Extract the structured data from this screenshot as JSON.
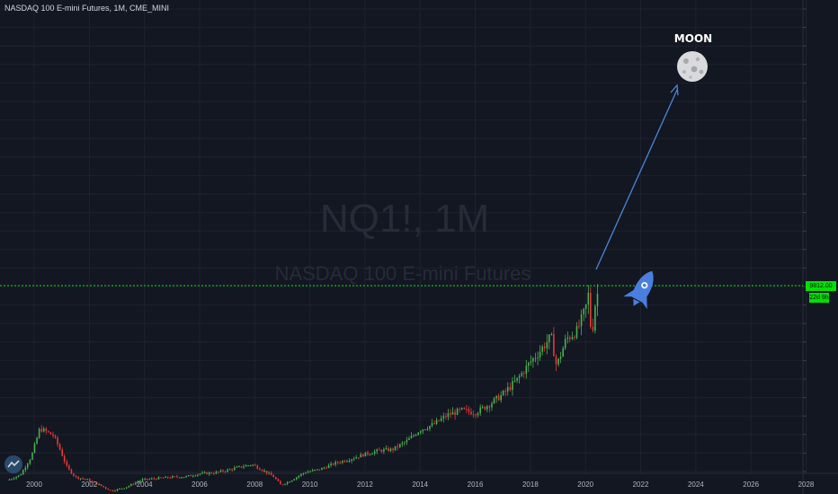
{
  "header": {
    "title": "NASDAQ 100 E-mini Futures, 1M, CME_MINI"
  },
  "watermark": {
    "symbol": "NQ1!, 1M",
    "description": "NASDAQ 100 E-mini Futures"
  },
  "annotation": {
    "moon_label": "MOON"
  },
  "price_axis": {
    "last_price": "9812.00",
    "countdown": "22d 9h"
  },
  "colors": {
    "background": "#131722",
    "up": "#4caf50",
    "down": "#e53935",
    "last_price_line": "#00e000",
    "arrow": "#4a86d8",
    "rocket": "#4a7fe0"
  },
  "chart_data": {
    "type": "candlestick",
    "interval": "1M",
    "xlim": [
      1999.0,
      2028.9
    ],
    "x_ticks": [
      "2000",
      "2002",
      "2004",
      "2006",
      "2008",
      "2010",
      "2012",
      "2014",
      "2016",
      "2018",
      "2020",
      "2022",
      "2024",
      "2026",
      "2028"
    ],
    "grid": true,
    "last_price": 9812,
    "close_path": [
      [
        1999.1,
        1400
      ],
      [
        1999.5,
        1600
      ],
      [
        1999.9,
        2400
      ],
      [
        2000.2,
        3600
      ],
      [
        2000.4,
        3500
      ],
      [
        2000.7,
        3300
      ],
      [
        2000.9,
        2800
      ],
      [
        2001.2,
        1900
      ],
      [
        2001.5,
        1500
      ],
      [
        2001.9,
        1400
      ],
      [
        2002.3,
        1200
      ],
      [
        2002.8,
        900
      ],
      [
        2003.3,
        1050
      ],
      [
        2003.9,
        1380
      ],
      [
        2004.5,
        1450
      ],
      [
        2005.0,
        1500
      ],
      [
        2005.5,
        1520
      ],
      [
        2006.0,
        1650
      ],
      [
        2006.5,
        1680
      ],
      [
        2007.0,
        1800
      ],
      [
        2007.5,
        1950
      ],
      [
        2007.9,
        2050
      ],
      [
        2008.3,
        1800
      ],
      [
        2008.7,
        1500
      ],
      [
        2008.95,
        1150
      ],
      [
        2009.3,
        1350
      ],
      [
        2009.8,
        1700
      ],
      [
        2010.4,
        1850
      ],
      [
        2010.9,
        2100
      ],
      [
        2011.5,
        2300
      ],
      [
        2012.0,
        2500
      ],
      [
        2012.5,
        2650
      ],
      [
        2013.0,
        2700
      ],
      [
        2013.5,
        3050
      ],
      [
        2014.0,
        3550
      ],
      [
        2014.5,
        3800
      ],
      [
        2015.0,
        4200
      ],
      [
        2015.5,
        4400
      ],
      [
        2016.0,
        4300
      ],
      [
        2016.5,
        4650
      ],
      [
        2017.0,
        5100
      ],
      [
        2017.5,
        5700
      ],
      [
        2018.0,
        6500
      ],
      [
        2018.3,
        6900
      ],
      [
        2018.75,
        7600
      ],
      [
        2018.95,
        6300
      ],
      [
        2019.3,
        7500
      ],
      [
        2019.7,
        7850
      ],
      [
        2020.0,
        8800
      ],
      [
        2020.15,
        9700
      ],
      [
        2020.2,
        7300
      ],
      [
        2020.35,
        9000
      ],
      [
        2020.5,
        9812
      ]
    ]
  }
}
